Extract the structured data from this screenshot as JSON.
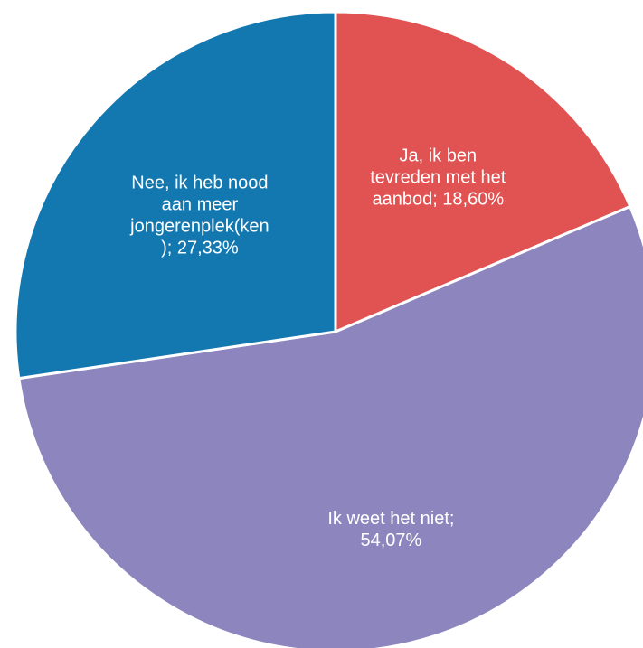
{
  "chart_data": {
    "type": "pie",
    "slices": [
      {
        "label_lines": [
          "Ja, ik ben",
          "tevreden met het",
          "aanbod; 18,60%"
        ],
        "value": 18.6,
        "color": "#e15252"
      },
      {
        "label_lines": [
          "Ik weet het niet;",
          "54,07%"
        ],
        "value": 54.07,
        "color": "#8d85bd"
      },
      {
        "label_lines": [
          "Nee, ik heb nood",
          "aan meer",
          "jongerenplek(ken",
          "); 27,33%"
        ],
        "value": 27.33,
        "color": "#1478b0"
      }
    ]
  }
}
